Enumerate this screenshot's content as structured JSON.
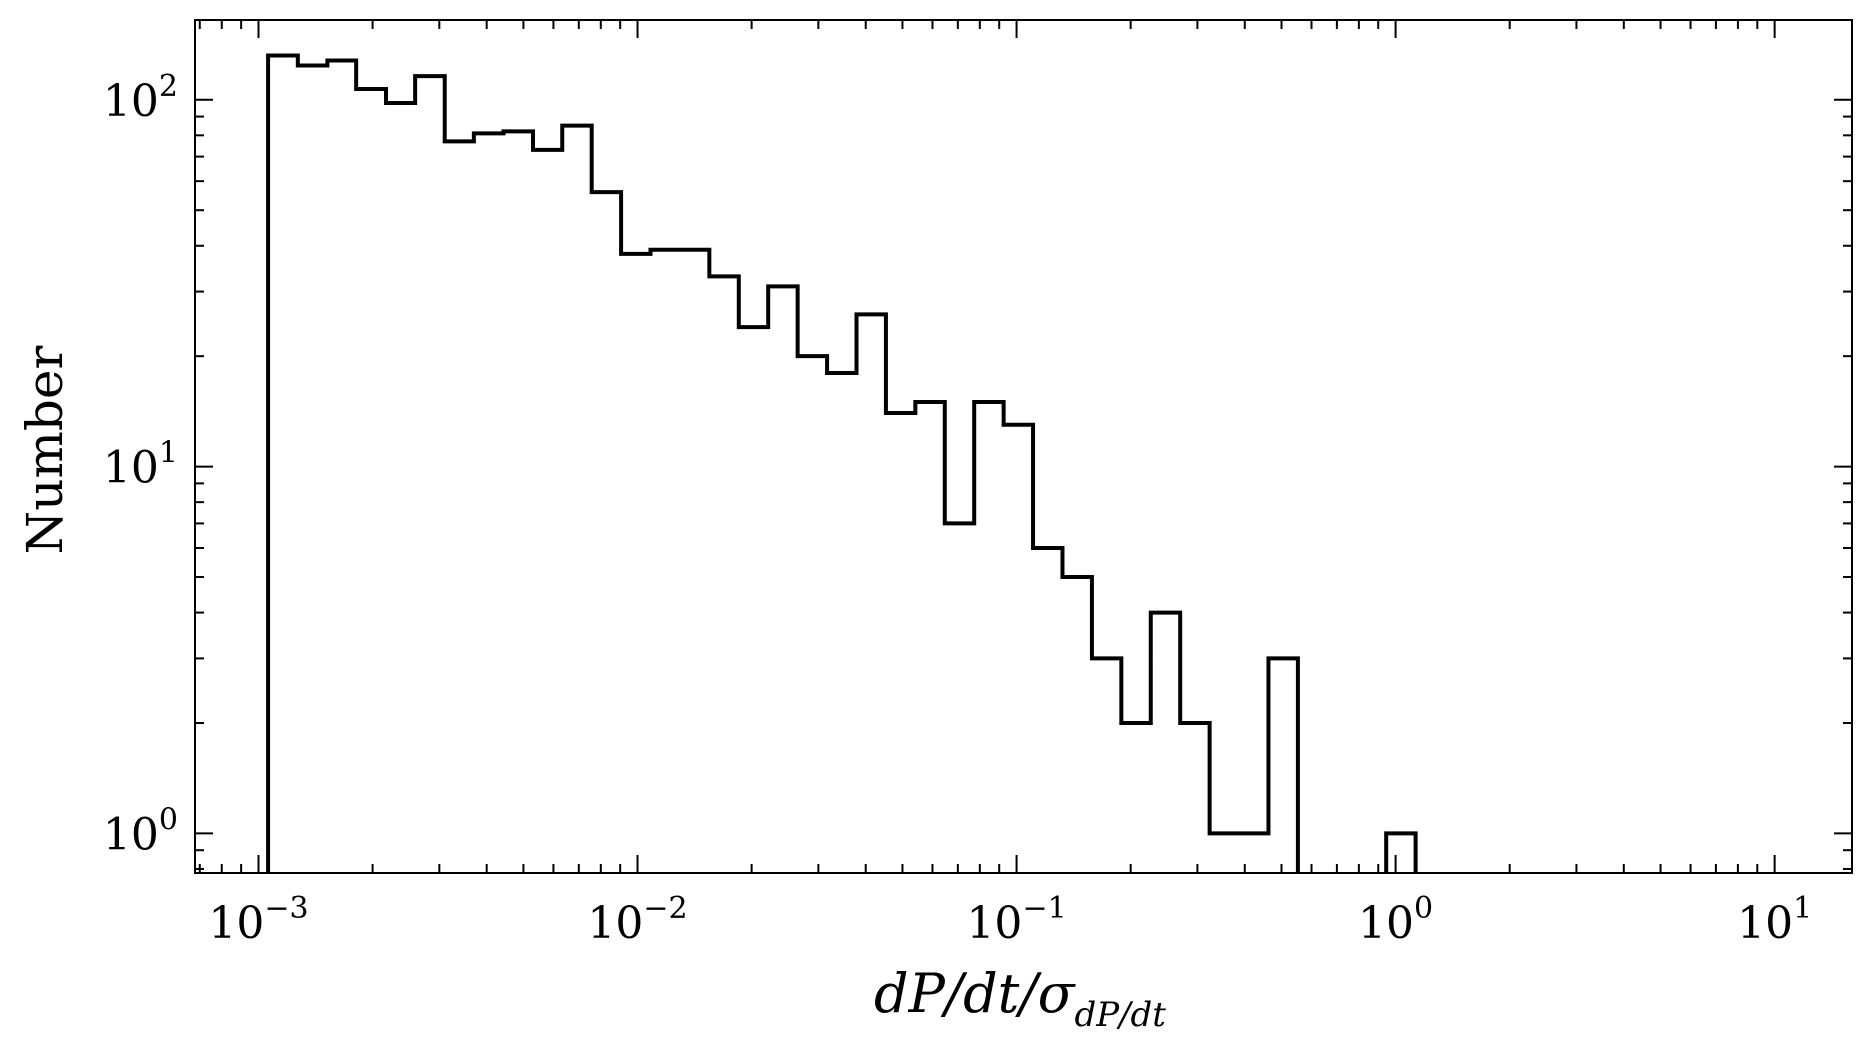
{
  "chart_data": {
    "type": "histogram",
    "xscale": "log",
    "yscale": "log",
    "xlim": [
      0.00068,
      16
    ],
    "ylim": [
      0.78,
      165
    ],
    "xlabel": "dP/dt/σ_{dP/dt}",
    "xlabel_parts": {
      "main": "dP/dt/σ",
      "sub": "dP/dt"
    },
    "ylabel": "Number",
    "xticks": [
      {
        "base": "10",
        "exp": "−3",
        "value": 0.001
      },
      {
        "base": "10",
        "exp": "−2",
        "value": 0.01
      },
      {
        "base": "10",
        "exp": "−1",
        "value": 0.1
      },
      {
        "base": "10",
        "exp": "0",
        "value": 1
      },
      {
        "base": "10",
        "exp": "1",
        "value": 10
      }
    ],
    "yticks": [
      {
        "base": "10",
        "exp": "0",
        "value": 1
      },
      {
        "base": "10",
        "exp": "1",
        "value": 10
      },
      {
        "base": "10",
        "exp": "2",
        "value": 100
      }
    ],
    "bin_edges": [
      0.00106,
      0.00127,
      0.00152,
      0.00181,
      0.00217,
      0.00259,
      0.0031,
      0.0037,
      0.00443,
      0.0053,
      0.00633,
      0.00757,
      0.00905,
      0.01082,
      0.01294,
      0.01547,
      0.0185,
      0.02212,
      0.02645,
      0.03163,
      0.03782,
      0.04522,
      0.05407,
      0.06466,
      0.07731,
      0.09245,
      0.11054,
      0.13218,
      0.15806,
      0.18899,
      0.22598,
      0.27022,
      0.32311,
      0.38635,
      0.46197,
      0.5524,
      0.66052,
      0.78981,
      0.94441,
      1.12927,
      1.35031
    ],
    "counts": [
      132,
      124,
      128,
      107,
      98,
      116,
      77,
      81,
      82,
      73,
      85,
      56,
      38,
      39,
      39,
      33,
      24,
      31,
      20,
      18,
      26,
      14,
      15,
      7,
      15,
      13,
      6,
      5,
      3,
      2,
      4,
      2,
      1,
      1,
      3,
      0,
      0,
      0,
      1,
      0
    ],
    "line_color": "#000000",
    "grid": false,
    "legend": "none"
  }
}
